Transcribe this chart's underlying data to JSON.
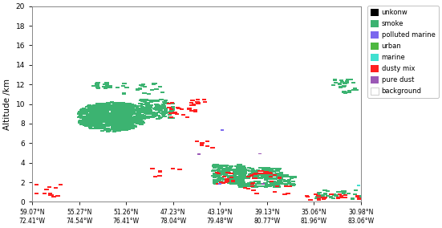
{
  "xlabel_pairs": [
    [
      "59.07°N",
      "72.41°W"
    ],
    [
      "55.27°N",
      "74.54°W"
    ],
    [
      "51.26°N",
      "76.41°W"
    ],
    [
      "47.23°N",
      "78.04°W"
    ],
    [
      "43.19°N",
      "79.48°W"
    ],
    [
      "39.13°N",
      "80.77°W"
    ],
    [
      "35.06°N",
      "81.96°W"
    ],
    [
      "30.98°N",
      "83.06°W"
    ]
  ],
  "ylabel": "Altitude /km",
  "ylim": [
    0,
    20
  ],
  "yticks": [
    0,
    2,
    4,
    6,
    8,
    10,
    12,
    14,
    16,
    18,
    20
  ],
  "legend_labels": [
    "unkonw",
    "smoke",
    "polluted marine",
    "urban",
    "marine",
    "dusty mix",
    "pure dust",
    "background"
  ],
  "legend_colors": [
    "#000000",
    "#3cb371",
    "#7b68ee",
    "#4db840",
    "#40e0d0",
    "#ff2020",
    "#9b59b6",
    "#ffffff"
  ],
  "background_color": "#ffffff",
  "plot_bg_color": "#ffffff",
  "figsize": [
    5.51,
    2.84
  ],
  "dpi": 100
}
